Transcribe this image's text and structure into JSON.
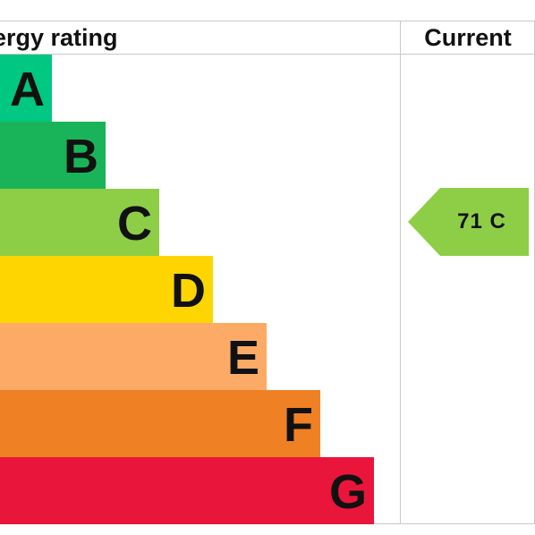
{
  "header": {
    "energy_rating": "ergy rating",
    "current": "Current"
  },
  "chart_data": {
    "type": "bar",
    "categories": [
      "A",
      "B",
      "C",
      "D",
      "E",
      "F",
      "G"
    ],
    "band_colors": [
      "#00c781",
      "#19b459",
      "#8dce46",
      "#ffd500",
      "#fcaa65",
      "#ef8023",
      "#e9153b"
    ],
    "current": {
      "value": 71,
      "band": "C",
      "label": "71 C",
      "color": "#8dce46"
    }
  }
}
